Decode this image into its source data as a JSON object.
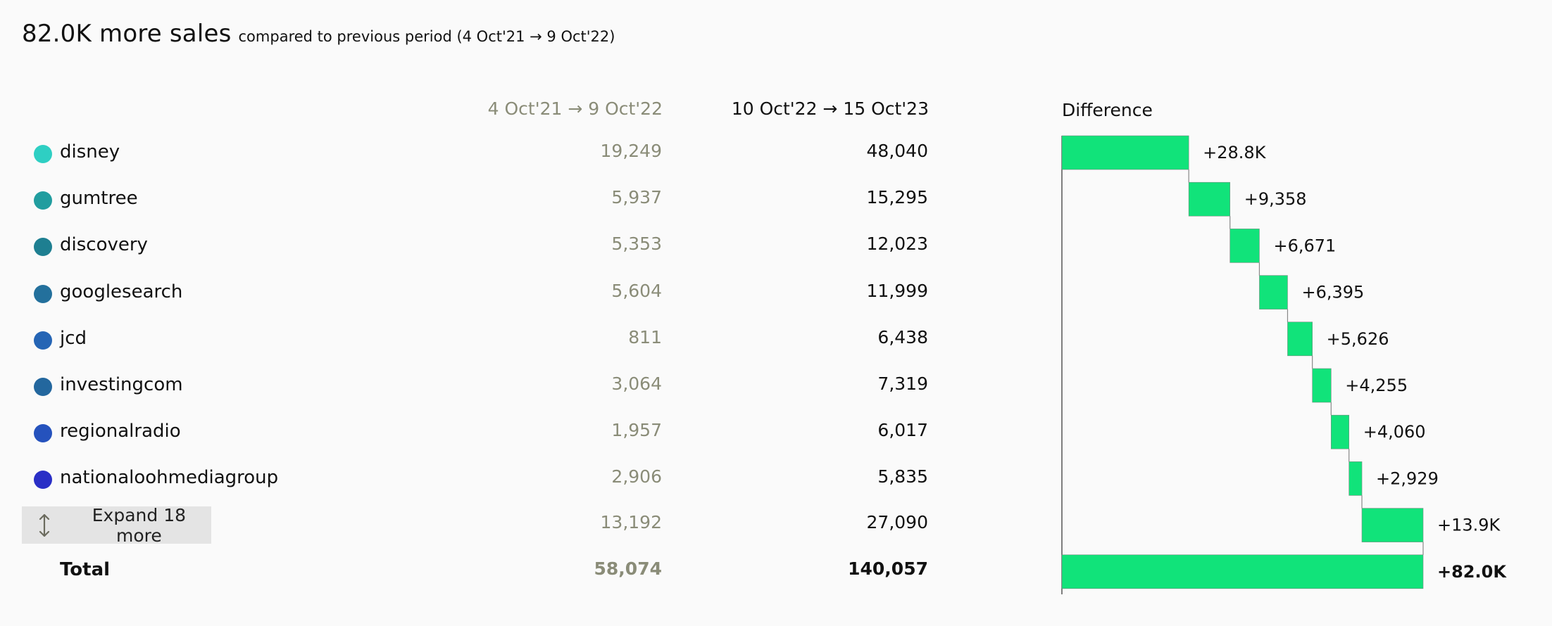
{
  "header": {
    "headline": "82.0K more sales",
    "subline": "compared to previous period (4 Oct'21 → 9 Oct'22)"
  },
  "columns": {
    "previous": "4 Oct'21 → 9 Oct'22",
    "current": "10 Oct'22 → 15 Oct'23",
    "difference": "Difference"
  },
  "rows": [
    {
      "name": "disney",
      "color": "#2ecfc3",
      "prev": "19,249",
      "curr": "48,040",
      "diff_label": "+28.8K"
    },
    {
      "name": "gumtree",
      "color": "#219d9f",
      "prev": "5,937",
      "curr": "15,295",
      "diff_label": "+9,358"
    },
    {
      "name": "discovery",
      "color": "#1e7f91",
      "prev": "5,353",
      "curr": "12,023",
      "diff_label": "+6,671"
    },
    {
      "name": "googlesearch",
      "color": "#23709c",
      "prev": "5,604",
      "curr": "11,999",
      "diff_label": "+6,395"
    },
    {
      "name": "jcd",
      "color": "#2565b5",
      "prev": "811",
      "curr": "6,438",
      "diff_label": "+5,626"
    },
    {
      "name": "investingcom",
      "color": "#23679e",
      "prev": "3,064",
      "curr": "7,319",
      "diff_label": "+4,255"
    },
    {
      "name": "regionalradio",
      "color": "#2552bd",
      "prev": "1,957",
      "curr": "6,017",
      "diff_label": "+4,060"
    },
    {
      "name": "nationaloohmediagroup",
      "color": "#2a2fc6",
      "prev": "2,906",
      "curr": "5,835",
      "diff_label": "+2,929"
    }
  ],
  "other": {
    "expand_label": "Expand 18 more",
    "prev": "13,192",
    "curr": "27,090",
    "diff_label": "+13.9K"
  },
  "total": {
    "label": "Total",
    "prev": "58,074",
    "curr": "140,057",
    "diff_label": "+82.0K"
  },
  "chart_data": {
    "type": "waterfall",
    "bar_color": "#11e37a",
    "categories": [
      "disney",
      "gumtree",
      "discovery",
      "googlesearch",
      "jcd",
      "investingcom",
      "regionalradio",
      "nationaloohmediagroup",
      "Expand 18 more",
      "Total"
    ],
    "values": [
      28791,
      9358,
      6671,
      6395,
      5626,
      4255,
      4060,
      2929,
      13898,
      81983
    ],
    "labels": [
      "+28.8K",
      "+9,358",
      "+6,671",
      "+6,395",
      "+5,626",
      "+4,255",
      "+4,060",
      "+2,929",
      "+13.9K",
      "+82.0K"
    ],
    "total_index": 9
  }
}
